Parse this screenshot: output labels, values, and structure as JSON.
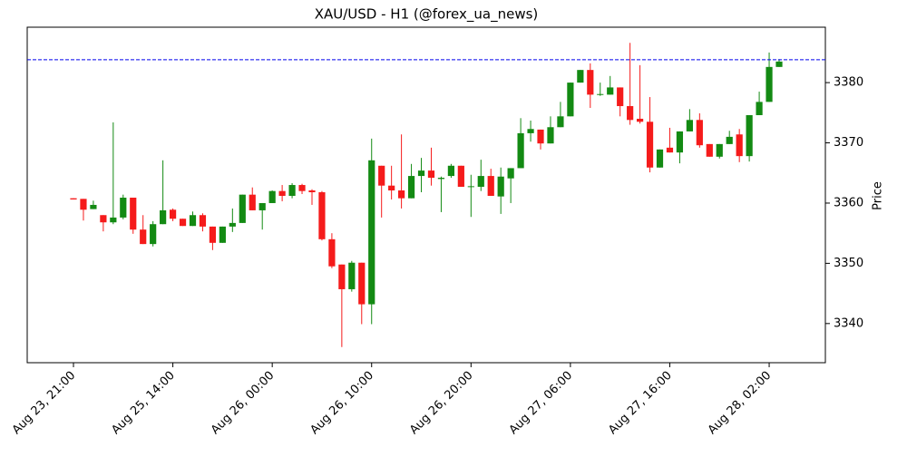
{
  "chart_data": {
    "type": "candlestick",
    "title": "XAU/USD - H1 (@forex_ua_news)",
    "ylabel": "Price",
    "categories": [
      "Aug 23, 21:00",
      null,
      null,
      null,
      null,
      null,
      null,
      null,
      null,
      null,
      "Aug 25, 14:00",
      null,
      null,
      null,
      null,
      null,
      null,
      null,
      null,
      null,
      "Aug 26, 00:00",
      null,
      null,
      null,
      null,
      null,
      null,
      null,
      null,
      null,
      "Aug 26, 10:00",
      null,
      null,
      null,
      null,
      null,
      null,
      null,
      null,
      null,
      "Aug 26, 20:00",
      null,
      null,
      null,
      null,
      null,
      null,
      null,
      null,
      null,
      "Aug 27, 06:00",
      null,
      null,
      null,
      null,
      null,
      null,
      null,
      null,
      null,
      "Aug 27, 16:00",
      null,
      null,
      null,
      null,
      null,
      null,
      null,
      null,
      null,
      "Aug 28, 02:00",
      null
    ],
    "open": [
      3360.8,
      3360.7,
      3359.0,
      3358.0,
      3356.8,
      3357.6,
      3360.9,
      3355.6,
      3353.2,
      3356.5,
      3358.9,
      3357.4,
      3356.2,
      3358.0,
      3356.1,
      3353.4,
      3356.1,
      3356.7,
      3361.4,
      3358.8,
      3360.0,
      3362.0,
      3361.2,
      3363.0,
      3362.1,
      3361.8,
      3354.0,
      3349.8,
      3345.7,
      3350.1,
      3343.2,
      3366.2,
      3362.9,
      3362.1,
      3360.8,
      3364.5,
      3365.4,
      3364.0,
      3364.5,
      3366.2,
      3362.7,
      3362.7,
      3364.5,
      3361.1,
      3364.1,
      3365.8,
      3371.6,
      3372.2,
      3369.9,
      3372.6,
      3374.4,
      3380.0,
      3382.1,
      3378.0,
      3378.0,
      3379.2,
      3376.1,
      3374.0,
      3373.5,
      3365.9,
      3369.2,
      3368.4,
      3371.9,
      3373.8,
      3369.8,
      3367.7,
      3369.8,
      3371.4,
      3367.8,
      3374.6,
      3376.8,
      3382.6
    ],
    "high": [
      3360.8,
      3360.7,
      3360.4,
      3358.0,
      3373.4,
      3361.4,
      3360.9,
      3358.0,
      3357.0,
      3367.1,
      3359.1,
      3357.4,
      3358.6,
      3358.3,
      3356.1,
      3356.1,
      3359.1,
      3361.4,
      3362.6,
      3360.0,
      3362.1,
      3363.0,
      3363.3,
      3363.2,
      3362.3,
      3362.0,
      3355.0,
      3349.8,
      3350.4,
      3350.1,
      3370.7,
      3366.2,
      3366.2,
      3371.4,
      3366.5,
      3367.5,
      3369.2,
      3364.4,
      3366.5,
      3366.2,
      3364.7,
      3367.2,
      3365.7,
      3365.9,
      3365.8,
      3374.1,
      3373.7,
      3372.2,
      3374.4,
      3376.8,
      3380.0,
      3382.1,
      3383.2,
      3380.0,
      3381.1,
      3379.2,
      3386.6,
      3382.9,
      3377.6,
      3368.9,
      3372.5,
      3371.9,
      3375.6,
      3374.9,
      3369.8,
      3369.8,
      3372.0,
      3372.3,
      3374.6,
      3378.5,
      3385.0,
      3383.9
    ],
    "low": [
      3360.6,
      3357.1,
      3359.0,
      3355.3,
      3356.5,
      3357.3,
      3354.9,
      3353.2,
      3352.8,
      3356.5,
      3357.0,
      3356.2,
      3356.2,
      3355.3,
      3352.2,
      3353.4,
      3355.2,
      3356.7,
      3358.8,
      3355.6,
      3360.0,
      3360.3,
      3360.8,
      3361.5,
      3359.7,
      3353.8,
      3349.2,
      3336.1,
      3345.3,
      3339.9,
      3339.9,
      3357.6,
      3360.6,
      3359.1,
      3360.8,
      3361.8,
      3362.9,
      3358.5,
      3364.2,
      3362.7,
      3357.7,
      3362.0,
      3361.2,
      3358.2,
      3360.0,
      3365.8,
      3370.2,
      3368.9,
      3369.9,
      3372.6,
      3374.4,
      3380.0,
      3375.8,
      3377.8,
      3378.0,
      3374.4,
      3373.0,
      3373.2,
      3365.1,
      3365.9,
      3368.4,
      3366.6,
      3371.9,
      3369.2,
      3367.7,
      3367.4,
      3369.8,
      3366.8,
      3366.9,
      3374.6,
      3376.8,
      3382.6
    ],
    "close": [
      3360.6,
      3358.9,
      3359.7,
      3356.8,
      3357.6,
      3360.9,
      3355.6,
      3353.2,
      3356.5,
      3358.8,
      3357.4,
      3356.2,
      3358.0,
      3356.1,
      3353.4,
      3356.1,
      3356.7,
      3361.4,
      3358.8,
      3360.0,
      3362.0,
      3361.2,
      3363.0,
      3362.0,
      3361.8,
      3354.0,
      3349.5,
      3345.7,
      3350.1,
      3343.2,
      3367.1,
      3362.9,
      3362.1,
      3360.8,
      3364.5,
      3365.4,
      3364.2,
      3364.2,
      3366.2,
      3362.7,
      3362.8,
      3364.5,
      3361.2,
      3364.4,
      3365.8,
      3371.6,
      3372.3,
      3369.9,
      3372.6,
      3374.4,
      3380.0,
      3382.1,
      3378.0,
      3378.1,
      3379.2,
      3376.1,
      3373.8,
      3373.5,
      3365.9,
      3368.9,
      3368.4,
      3371.9,
      3373.8,
      3369.6,
      3367.7,
      3369.8,
      3371.0,
      3367.8,
      3374.6,
      3376.8,
      3382.6,
      3383.5
    ],
    "up_color": "#138a13",
    "down_color": "#f51b1b",
    "ylim": [
      3333.5,
      3389.2
    ],
    "yticks": [
      3340,
      3350,
      3360,
      3370,
      3380
    ],
    "hline": {
      "value": 3383.8,
      "color": "#0000ee"
    }
  }
}
